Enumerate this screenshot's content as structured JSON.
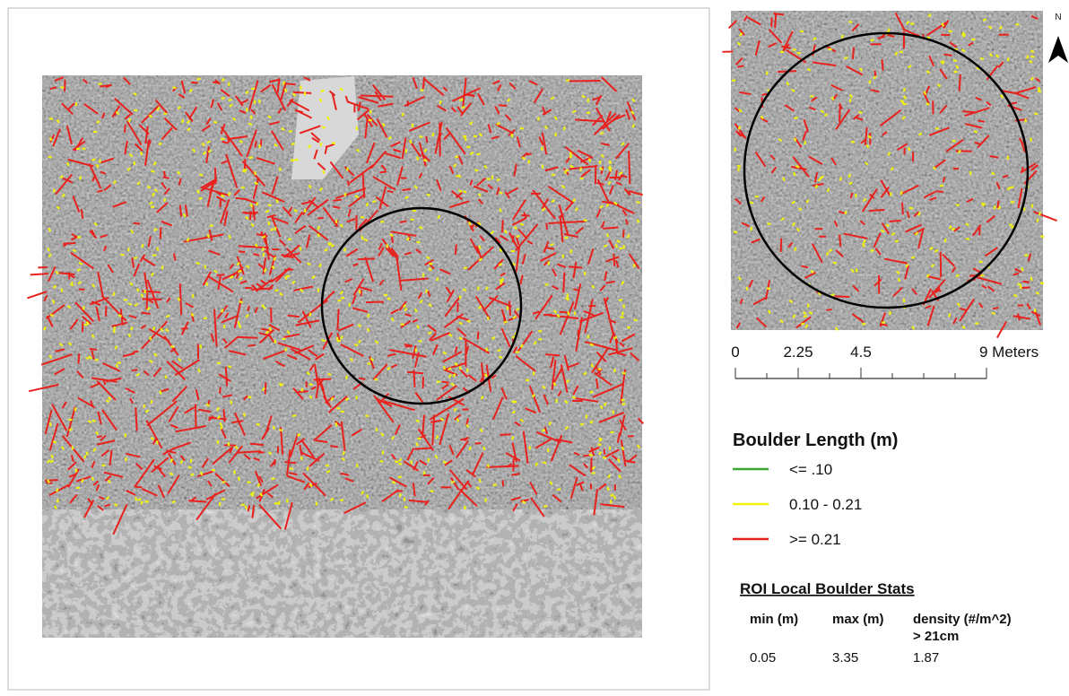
{
  "north_arrow": "N",
  "scale_bar": {
    "ticks": [
      0,
      2.25,
      4.5,
      {
        "value": 9,
        "label": "9 Meters"
      }
    ]
  },
  "legend": {
    "title": "Boulder Length (m)",
    "items": [
      {
        "label": "<= .10",
        "color": "#3aa635"
      },
      {
        "label": "0.10 - 0.21",
        "color": "#f2f20a"
      },
      {
        "label": ">= 0.21",
        "color": "#e8211d"
      }
    ]
  },
  "stats": {
    "title": "ROI Local Boulder Stats",
    "headers": [
      "min (m)",
      "max (m)",
      "density (#/m^2)"
    ],
    "header_note": "> 21cm",
    "values": [
      0.05,
      3.35,
      1.87
    ]
  }
}
